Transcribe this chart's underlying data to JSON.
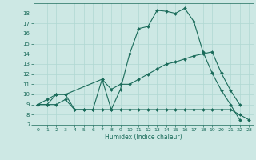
{
  "background_color": "#cde8e4",
  "grid_color": "#b0d8d2",
  "line_color": "#1a6b5a",
  "xlabel": "Humidex (Indice chaleur)",
  "xlim": [
    -0.5,
    23.5
  ],
  "ylim": [
    7,
    19
  ],
  "yticks": [
    7,
    8,
    9,
    10,
    11,
    12,
    13,
    14,
    15,
    16,
    17,
    18
  ],
  "xticks": [
    0,
    1,
    2,
    3,
    4,
    5,
    6,
    7,
    8,
    9,
    10,
    11,
    12,
    13,
    14,
    15,
    16,
    17,
    18,
    19,
    20,
    21,
    22,
    23
  ],
  "line1_x": [
    0,
    1,
    2,
    3,
    4,
    5,
    6,
    7,
    8,
    9,
    10,
    11,
    12,
    13,
    14,
    15,
    16,
    17,
    18,
    19,
    20,
    21,
    22,
    23
  ],
  "line1_y": [
    9,
    9,
    10,
    10,
    8.5,
    8.5,
    8.5,
    11.5,
    8.5,
    10.5,
    14.0,
    16.5,
    16.7,
    18.3,
    18.2,
    18.0,
    18.5,
    17.2,
    14.2,
    12.1,
    10.4,
    9.0,
    7.5,
    null
  ],
  "line2_x": [
    0,
    1,
    2,
    3,
    7,
    8,
    9,
    10,
    11,
    12,
    13,
    14,
    15,
    16,
    17,
    18,
    19,
    20,
    21,
    22,
    23
  ],
  "line2_y": [
    9,
    9.5,
    10,
    10,
    11.5,
    10.5,
    11.0,
    11.0,
    11.5,
    12.0,
    12.5,
    13.0,
    13.2,
    13.5,
    13.8,
    14.0,
    14.2,
    12.1,
    10.4,
    9.0,
    7.5
  ],
  "line3_x": [
    0,
    1,
    2,
    3,
    4,
    5,
    6,
    7,
    8,
    9,
    10,
    11,
    12,
    13,
    14,
    15,
    16,
    17,
    18,
    19,
    20,
    21,
    22,
    23
  ],
  "line3_y": [
    9,
    9,
    9,
    9.5,
    8.5,
    8.5,
    8.5,
    8.5,
    8.5,
    8.5,
    8.5,
    8.5,
    8.5,
    8.5,
    8.5,
    8.5,
    8.5,
    8.5,
    8.5,
    8.5,
    8.5,
    8.5,
    8.0,
    7.5
  ]
}
